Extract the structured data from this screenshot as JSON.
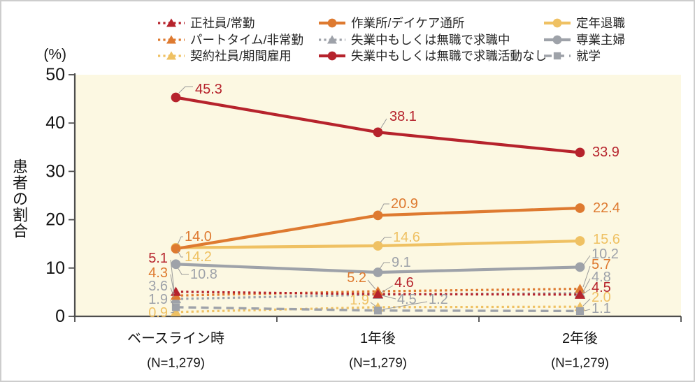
{
  "chart_data": {
    "type": "line",
    "title": "",
    "y_unit": "(%)",
    "ylabel": "患者の割合",
    "ylim": [
      0,
      50
    ],
    "y_ticks": [
      50,
      40,
      30,
      20,
      10,
      0
    ],
    "grid": false,
    "legend_position": "top",
    "plot_background": "#FCF8E2",
    "categories": [
      "ベースライン時",
      "1年後",
      "2年後"
    ],
    "category_sublabels": [
      "(N=1,279)",
      "(N=1,279)",
      "(N=1,279)"
    ],
    "series": [
      {
        "name": "正社員/常勤",
        "values": [
          5.1,
          4.6,
          4.5
        ],
        "color": "#B6232C",
        "marker": "triangle",
        "line": "dotted"
      },
      {
        "name": "パートタイム/非常勤",
        "values": [
          4.3,
          5.2,
          5.7
        ],
        "color": "#DE7A30",
        "marker": "triangle",
        "line": "dotted"
      },
      {
        "name": "契約社員/期間雇用",
        "values": [
          0.9,
          1.9,
          2.0
        ],
        "color": "#EFC163",
        "marker": "triangle",
        "line": "dotted"
      },
      {
        "name": "作業所/デイケア通所",
        "values": [
          14.0,
          20.9,
          22.4
        ],
        "color": "#DE7A30",
        "marker": "circle",
        "line": "solid"
      },
      {
        "name": "失業中もしくは無職で求職中",
        "values": [
          3.6,
          4.5,
          4.8
        ],
        "color": "#9EA2A9",
        "marker": "triangle",
        "line": "dotted"
      },
      {
        "name": "失業中もしくは無職で求職活動なし",
        "values": [
          45.3,
          38.1,
          33.9
        ],
        "color": "#B6232C",
        "marker": "circle",
        "line": "solid"
      },
      {
        "name": "定年退職",
        "values": [
          14.2,
          14.6,
          15.6
        ],
        "color": "#EFC163",
        "marker": "circle",
        "line": "solid"
      },
      {
        "name": "専業主婦",
        "values": [
          10.8,
          9.1,
          10.2
        ],
        "color": "#9EA2A9",
        "marker": "circle",
        "line": "solid"
      },
      {
        "name": "就学",
        "values": [
          1.9,
          1.2,
          1.1
        ],
        "color": "#9EA2A9",
        "marker": "square",
        "line": "dashed"
      }
    ],
    "colors": {
      "dark_red": "#B6232C",
      "orange": "#DE7A30",
      "gold": "#EFC163",
      "gray": "#9EA2A9",
      "axis": "#4D4D4D",
      "leader_line": "#9B9B9B",
      "tick_text": "#141414",
      "legend_text": "#262626"
    }
  }
}
